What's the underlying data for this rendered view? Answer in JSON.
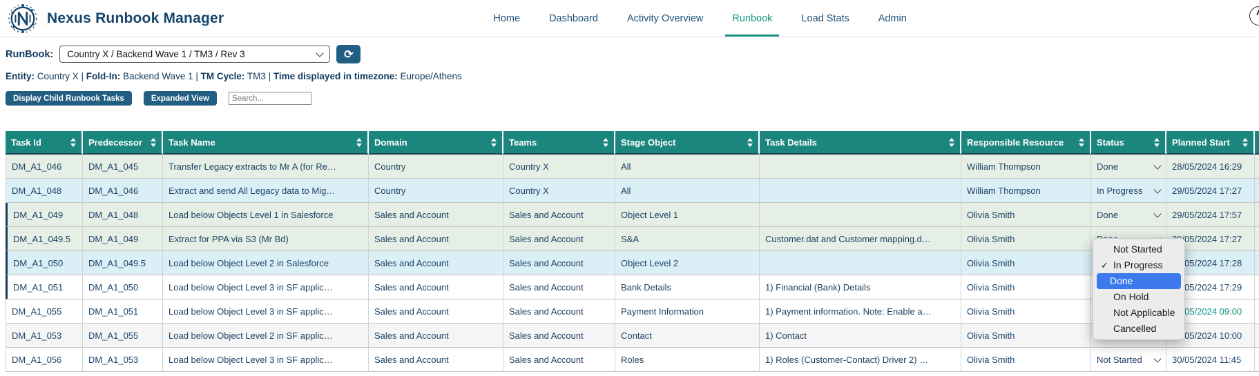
{
  "app": {
    "title": "Nexus Runbook Manager"
  },
  "nav": {
    "items": [
      {
        "label": "Home",
        "active": false
      },
      {
        "label": "Dashboard",
        "active": false
      },
      {
        "label": "Activity Overview",
        "active": false
      },
      {
        "label": "Runbook",
        "active": true
      },
      {
        "label": "Load Stats",
        "active": false
      },
      {
        "label": "Admin",
        "active": false
      }
    ]
  },
  "runbook_bar": {
    "label": "RunBook:",
    "selected": "Country X / Backend Wave 1 / TM3 / Rev 3"
  },
  "meta_line": {
    "separator": " | ",
    "segments": [
      {
        "label": "Entity:",
        "value": "Country X"
      },
      {
        "label": "Fold-In:",
        "value": "Backend Wave 1"
      },
      {
        "label": "TM Cycle:",
        "value": "TM3"
      },
      {
        "label": "Time displayed in timezone:",
        "value": "Europe/Athens"
      }
    ]
  },
  "toolbar": {
    "display_child_button": "Display Child Runbook Tasks",
    "expanded_view_button": "Expanded View",
    "search_placeholder": "Search..."
  },
  "table": {
    "columns": [
      "Task Id",
      "Predecessor",
      "Task Name",
      "Domain",
      "Teams",
      "Stage Object",
      "Task Details",
      "Responsible Resource",
      "Status",
      "Planned Start",
      ""
    ],
    "rows": [
      {
        "id": "DM_A1_046",
        "predecessor": "DM_A1_045",
        "name": "Transfer Legacy extracts to Mr A (for Re…",
        "domain": "Country",
        "teams": "Country X",
        "stage_object": "All",
        "details": "",
        "resource": "William Thompson",
        "status": "Done",
        "planned_start": "28/05/2024 16:29",
        "tone": "green",
        "start_teal": false,
        "marker": false
      },
      {
        "id": "DM_A1_048",
        "predecessor": "DM_A1_046",
        "name": "Extract and send All Legacy data to Mig…",
        "domain": "Country",
        "teams": "Country X",
        "stage_object": "All",
        "details": "",
        "resource": "William Thompson",
        "status": "In Progress",
        "planned_start": "29/05/2024 17:27",
        "tone": "blue",
        "start_teal": false,
        "marker": false
      },
      {
        "id": "DM_A1_049",
        "predecessor": "DM_A1_048",
        "name": "Load below Objects Level 1 in Salesforce",
        "domain": "Sales and Account",
        "teams": "Sales and Account",
        "stage_object": "Object Level 1",
        "details": "",
        "resource": "Olivia Smith",
        "status": "Done",
        "planned_start": "29/05/2024 17:57",
        "tone": "green",
        "start_teal": false,
        "marker": true
      },
      {
        "id": "DM_A1_049.5",
        "predecessor": "DM_A1_049",
        "name": "Extract for PPA via S3 (Mr Bd)",
        "domain": "Sales and Account",
        "teams": "Sales and Account",
        "stage_object": "S&A",
        "details": "Customer.dat and Customer mapping.d…",
        "resource": "Olivia Smith",
        "status": "Done",
        "planned_start": "29/05/2024 17:27",
        "tone": "green",
        "start_teal": false,
        "marker": true
      },
      {
        "id": "DM_A1_050",
        "predecessor": "DM_A1_049.5",
        "name": "Load below Object Level 2 in Salesforce",
        "domain": "Sales and Account",
        "teams": "Sales and Account",
        "stage_object": "Object Level 2",
        "details": "",
        "resource": "Olivia Smith",
        "status": "In Progress",
        "planned_start": "29/05/2024 17:28",
        "tone": "blue",
        "start_teal": false,
        "marker": true
      },
      {
        "id": "DM_A1_051",
        "predecessor": "DM_A1_050",
        "name": "Load below Object Level 3 in SF applic…",
        "domain": "Sales and Account",
        "teams": "Sales and Account",
        "stage_object": "Bank Details",
        "details": "1) Financial (Bank) Details",
        "resource": "Olivia Smith",
        "status": "",
        "planned_start": "29/05/2024 17:29",
        "tone": "white",
        "start_teal": false,
        "marker": true
      },
      {
        "id": "DM_A1_055",
        "predecessor": "DM_A1_051",
        "name": "Load below Object Level 3 in SF applic…",
        "domain": "Sales and Account",
        "teams": "Sales and Account",
        "stage_object": "Payment Information",
        "details": "1) Payment information. Note: Enable a…",
        "resource": "Olivia Smith",
        "status": "",
        "planned_start": "30/05/2024 09:00",
        "tone": "white",
        "start_teal": true,
        "marker": false
      },
      {
        "id": "DM_A1_053",
        "predecessor": "DM_A1_055",
        "name": "Load below Object Level 2 in SF applic…",
        "domain": "Sales and Account",
        "teams": "Sales and Account",
        "stage_object": "Contact",
        "details": "1) Contact",
        "resource": "Olivia Smith",
        "status": "Not Started",
        "planned_start": "30/05/2024 10:00",
        "tone": "gray",
        "start_teal": false,
        "marker": false
      },
      {
        "id": "DM_A1_056",
        "predecessor": "DM_A1_053",
        "name": "Load below Object Level 3 in SF applic…",
        "domain": "Sales and Account",
        "teams": "Sales and Account",
        "stage_object": "Roles",
        "details": "1) Roles (Customer-Contact) Driver 2) …",
        "resource": "Olivia Smith",
        "status": "Not Started",
        "planned_start": "30/05/2024 11:45",
        "tone": "white",
        "start_teal": false,
        "marker": false
      }
    ]
  },
  "status_dropdown": {
    "options": [
      {
        "label": "Not Started",
        "checked": false,
        "highlighted": false
      },
      {
        "label": "In Progress",
        "checked": true,
        "highlighted": false
      },
      {
        "label": "Done",
        "checked": false,
        "highlighted": true
      },
      {
        "label": "On Hold",
        "checked": false,
        "highlighted": false
      },
      {
        "label": "Not Applicable",
        "checked": false,
        "highlighted": false
      },
      {
        "label": "Cancelled",
        "checked": false,
        "highlighted": false
      }
    ]
  },
  "icons": {
    "refresh": "⟳",
    "check": "✓"
  },
  "colors": {
    "table_header": "#1a867d",
    "nav_active": "#13967f",
    "button": "#215e82",
    "row_done": "#e5efe5",
    "row_in_progress": "#daeff6",
    "row_alt": "#f5f5f5",
    "dropdown_highlight": "#3b79ec",
    "teal_date": "#0f9482",
    "navy_text": "#16456b"
  }
}
